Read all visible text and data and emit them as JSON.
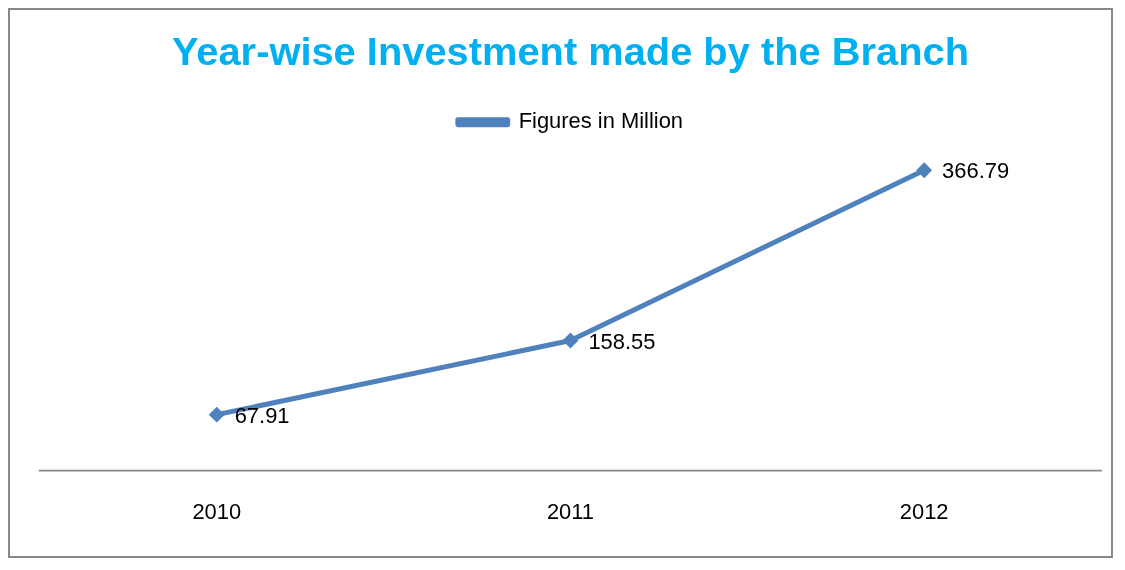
{
  "chart_data": {
    "type": "line",
    "title": "Year-wise Investment made by the Branch",
    "categories": [
      "2010",
      "2011",
      "2012"
    ],
    "series": [
      {
        "name": "Figures in Million",
        "color": "#4f81bd",
        "values": [
          67.91,
          158.55,
          366.79
        ]
      }
    ],
    "data_labels": true,
    "legend": "top",
    "marker": "diamond",
    "grid": false,
    "tick_labels": "x"
  }
}
